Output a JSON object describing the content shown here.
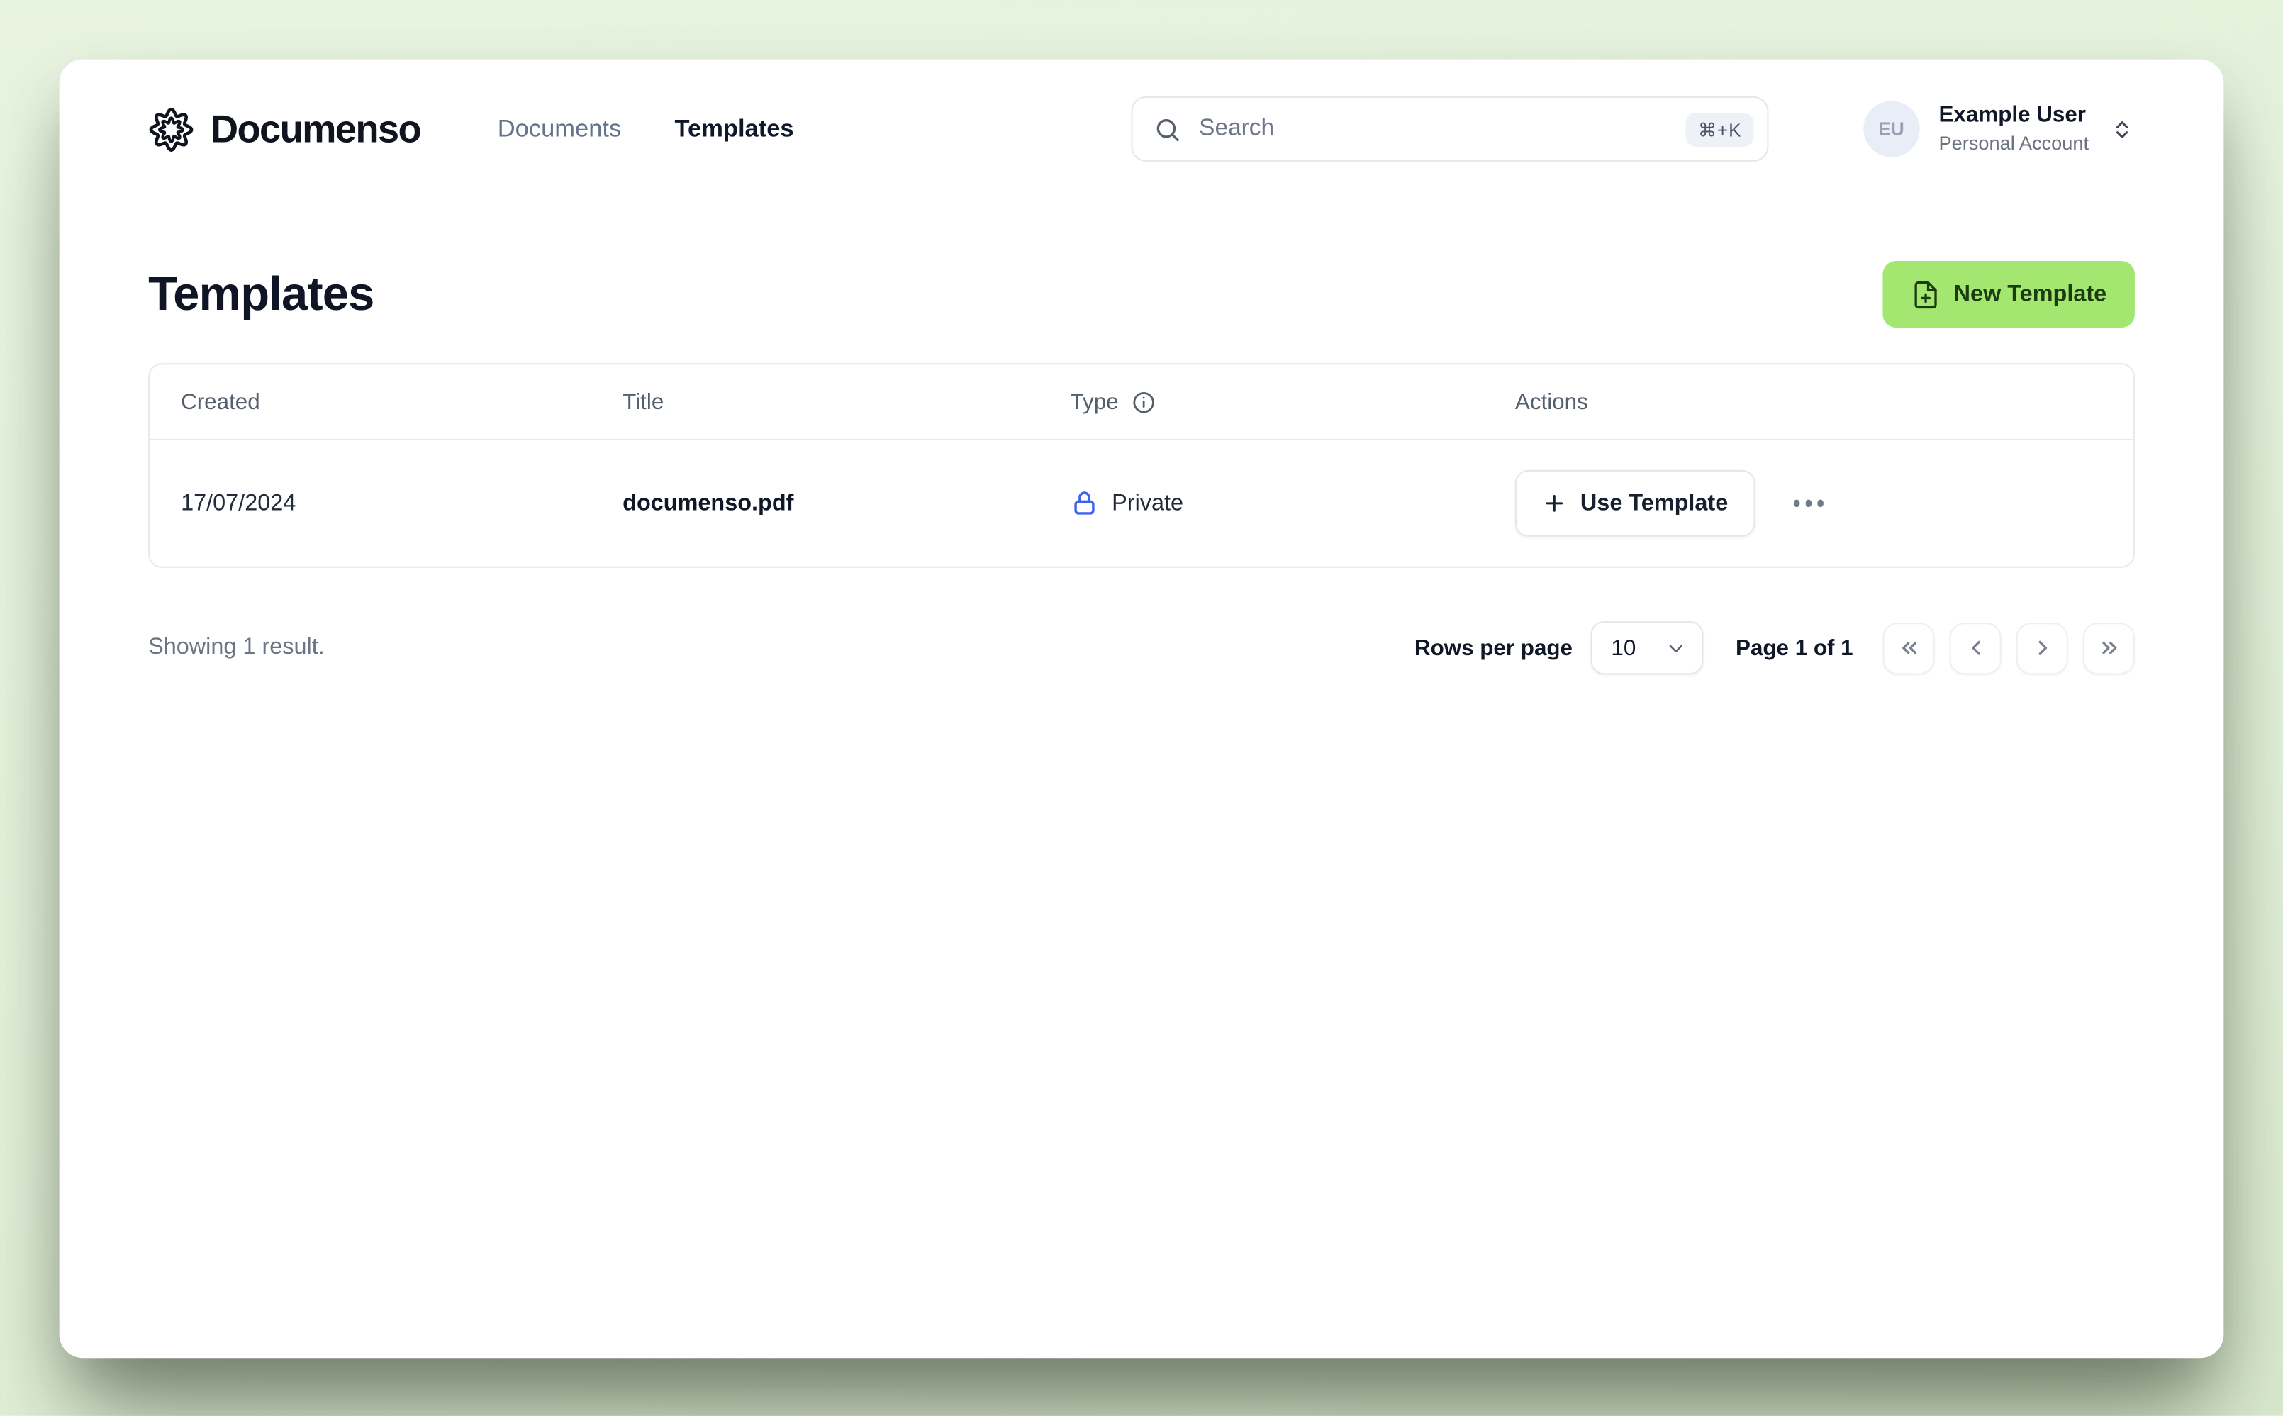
{
  "header": {
    "brand": "Documenso",
    "nav": [
      {
        "label": "Documents",
        "active": false
      },
      {
        "label": "Templates",
        "active": true
      }
    ],
    "search": {
      "placeholder": "Search",
      "value": "",
      "shortcut": "⌘+K"
    },
    "user": {
      "initials": "EU",
      "name": "Example User",
      "account_type": "Personal Account"
    }
  },
  "page": {
    "title": "Templates",
    "new_template_button": "New Template"
  },
  "table": {
    "columns": [
      "Created",
      "Title",
      "Type",
      "Actions"
    ],
    "rows": [
      {
        "created": "17/07/2024",
        "title": "documenso.pdf",
        "type": "Private",
        "use_template_label": "Use Template"
      }
    ]
  },
  "footer": {
    "summary": "Showing 1 result.",
    "rows_per_page_label": "Rows per page",
    "rows_per_page_value": "10",
    "page_indicator": "Page 1 of 1"
  },
  "icons": {
    "brand": "documenso-scalloped-seal",
    "search": "magnifier",
    "shortcut": "command-key-glyph",
    "account_switcher": "chevrons-up-down",
    "new_template": "file-plus",
    "type_info": "info-circle",
    "type_private": "lock",
    "use_template": "plus",
    "row_menu": "ellipsis-dots",
    "rows_per_page": "chevron-down",
    "pagination": [
      "chevrons-left",
      "chevron-left",
      "chevron-right",
      "chevrons-right"
    ]
  },
  "colors": {
    "background": "#e2f0d9",
    "card": "#ffffff",
    "accent_green": "#a3e771",
    "accent_green_text": "#1d3b11",
    "brand_text": "#10141f",
    "lock_blue": "#3e63ee",
    "muted_text": "#6a7686",
    "border": "#e6e9ee"
  }
}
